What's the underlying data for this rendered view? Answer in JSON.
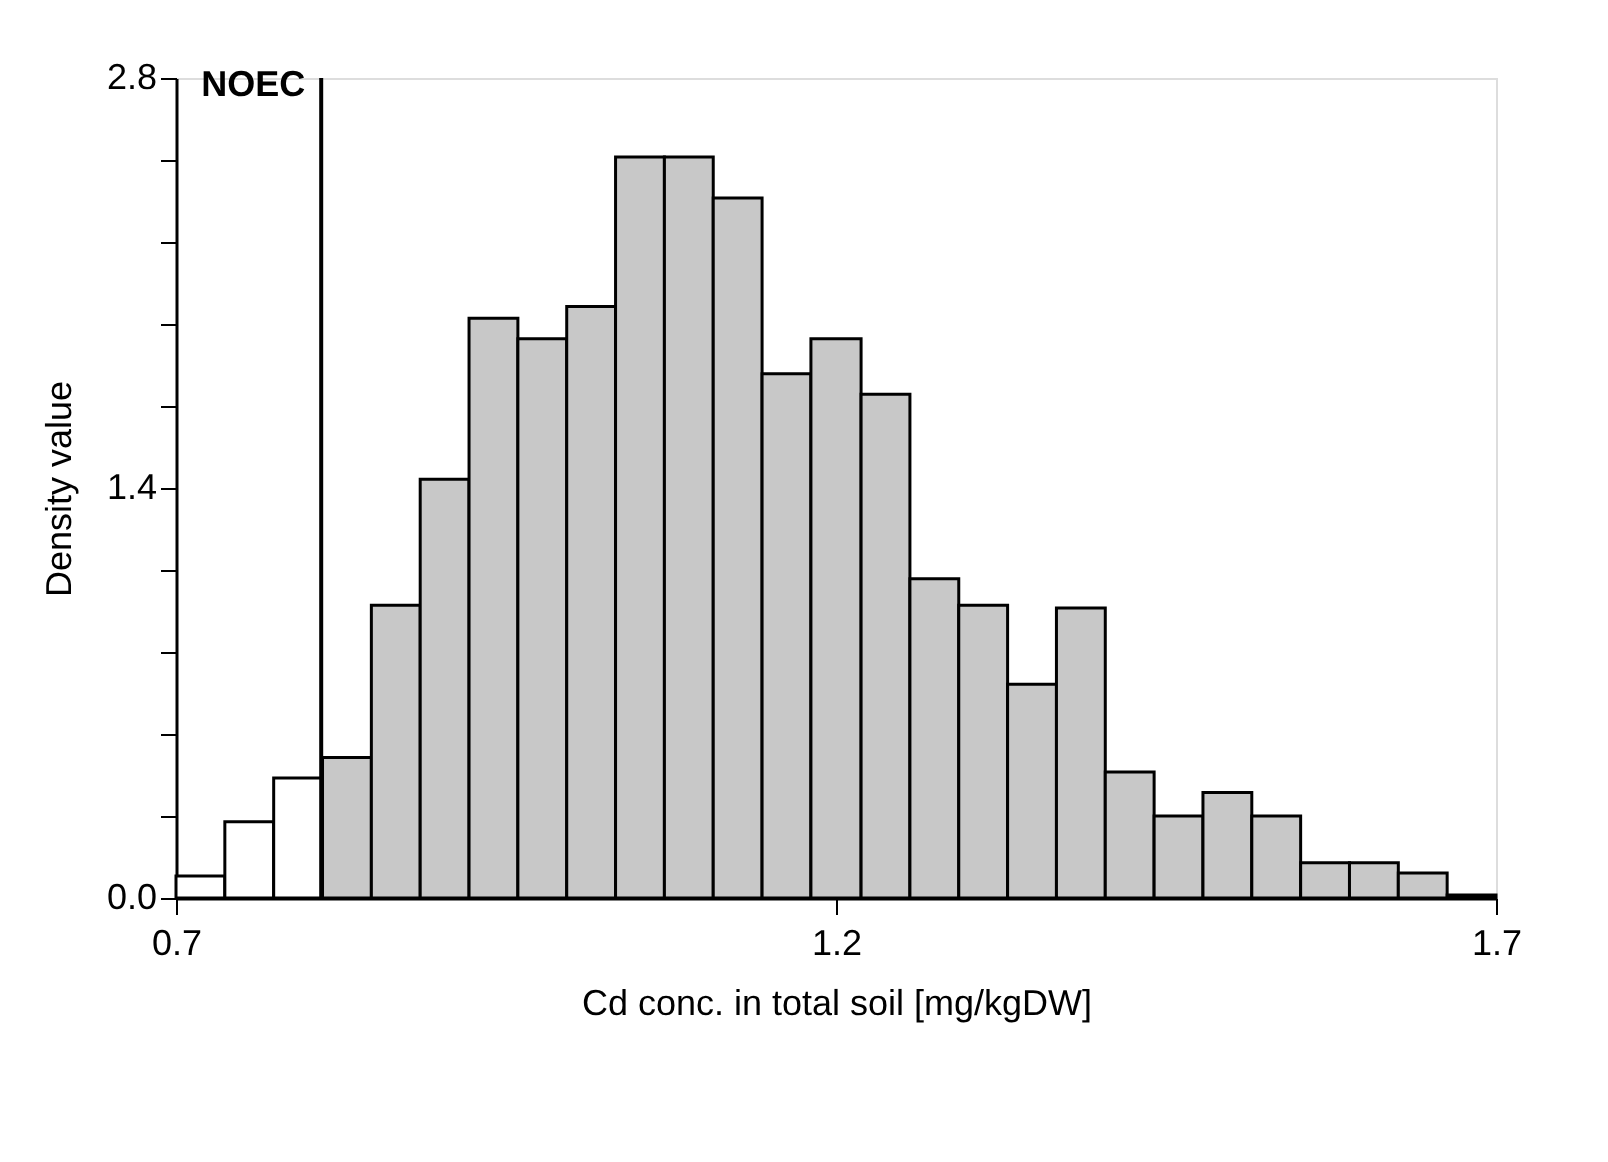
{
  "chart_data": {
    "type": "histogram",
    "xlabel": "Cd conc. in total soil [mg/kgDW]",
    "ylabel": "Density value",
    "bins": [
      0.7,
      0.737,
      0.774,
      0.811,
      0.848,
      0.885,
      0.922,
      0.959,
      0.996,
      1.033,
      1.07,
      1.107,
      1.144,
      1.181,
      1.219,
      1.256,
      1.293,
      1.33,
      1.367,
      1.404,
      1.441,
      1.478,
      1.515,
      1.552,
      1.589,
      1.626,
      1.663,
      1.7
    ],
    "values": [
      0.075,
      0.26,
      0.41,
      0.48,
      1.0,
      1.43,
      1.98,
      1.91,
      2.02,
      2.53,
      2.53,
      2.39,
      1.79,
      1.91,
      1.72,
      1.09,
      1.0,
      0.73,
      0.99,
      0.43,
      0.28,
      0.36,
      0.28,
      0.12,
      0.12,
      0.085,
      0.01
    ],
    "colors": [
      "#ffffff",
      "#ffffff",
      "#ffffff",
      "#c8c8c8",
      "#c8c8c8",
      "#c8c8c8",
      "#c8c8c8",
      "#c8c8c8",
      "#c8c8c8",
      "#c8c8c8",
      "#c8c8c8",
      "#c8c8c8",
      "#c8c8c8",
      "#c8c8c8",
      "#c8c8c8",
      "#c8c8c8",
      "#c8c8c8",
      "#c8c8c8",
      "#c8c8c8",
      "#c8c8c8",
      "#c8c8c8",
      "#c8c8c8",
      "#c8c8c8",
      "#c8c8c8",
      "#c8c8c8",
      "#c8c8c8",
      "#c8c8c8"
    ],
    "xlim": [
      0.7,
      1.7
    ],
    "xticks": [
      0.7,
      1.2,
      1.7
    ],
    "ylim": [
      0,
      2.8
    ],
    "yticks": [
      {
        "value": 0,
        "label": "0.0"
      },
      {
        "value": 0.28,
        "label": null
      },
      {
        "value": 0.56,
        "label": null
      },
      {
        "value": 0.84,
        "label": null
      },
      {
        "value": 1.12,
        "label": null
      },
      {
        "value": 1.4,
        "label": "1.4"
      },
      {
        "value": 1.68,
        "label": null
      },
      {
        "value": 1.96,
        "label": null
      },
      {
        "value": 2.24,
        "label": null
      },
      {
        "value": 2.52,
        "label": null
      },
      {
        "value": 2.8,
        "label": "2.8"
      }
    ],
    "ref_lines": [
      {
        "axis": "x",
        "value": 0.81,
        "label": "NOEC",
        "color": "#000000"
      }
    ],
    "grid": false
  }
}
